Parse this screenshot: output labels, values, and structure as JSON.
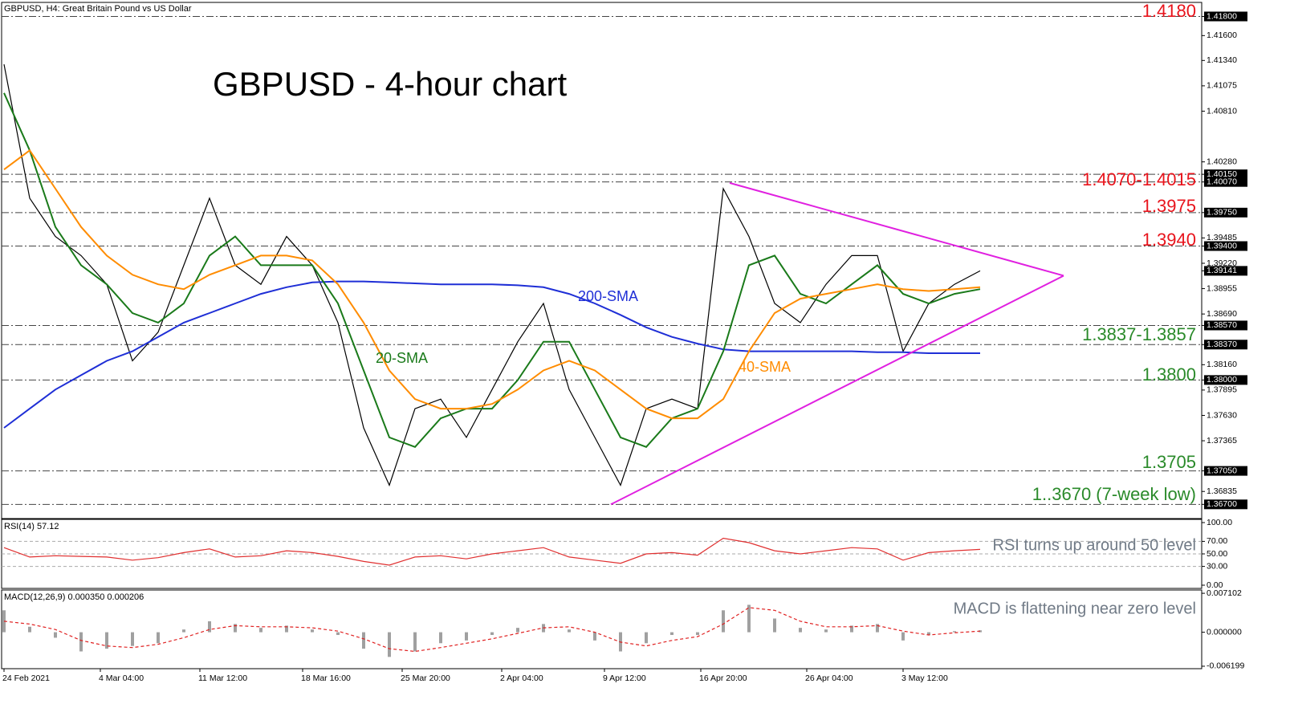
{
  "header": "GBPUSD, H4:  Great Britain Pound vs US Dollar",
  "chart_data": [
    {
      "type": "line",
      "title": "GBPUSD - 4-hour chart",
      "x": [
        0,
        8,
        16,
        24,
        32,
        40,
        48,
        56,
        64,
        72,
        80,
        88,
        96,
        104,
        112,
        120,
        128,
        136,
        144,
        152,
        160,
        168,
        176,
        184,
        192,
        200,
        208,
        216,
        224,
        232,
        240,
        248,
        256,
        264,
        272,
        280,
        288,
        296,
        304
      ],
      "xlim": [
        0,
        373
      ],
      "values": [
        1.413,
        1.399,
        1.395,
        1.393,
        1.39,
        1.382,
        1.385,
        1.392,
        1.399,
        1.392,
        1.39,
        1.395,
        1.392,
        1.386,
        1.375,
        1.369,
        1.377,
        1.378,
        1.374,
        1.379,
        1.384,
        1.388,
        1.379,
        1.374,
        1.369,
        1.377,
        1.378,
        1.377,
        1.4,
        1.395,
        1.388,
        1.386,
        1.39,
        1.393,
        1.393,
        1.383,
        1.388,
        1.39,
        1.39141
      ],
      "color": "#000000",
      "series": [
        {
          "name": "200-SMA",
          "color": "#1f2fd6",
          "values": [
            1.375,
            1.377,
            1.379,
            1.3805,
            1.382,
            1.383,
            1.3845,
            1.386,
            1.387,
            1.388,
            1.389,
            1.3897,
            1.3902,
            1.3903,
            1.3903,
            1.3902,
            1.3901,
            1.39,
            1.39,
            1.39,
            1.3899,
            1.3897,
            1.389,
            1.388,
            1.3868,
            1.3855,
            1.3845,
            1.3838,
            1.3832,
            1.383,
            1.383,
            1.383,
            1.383,
            1.383,
            1.3829,
            1.3829,
            1.3828,
            1.3828,
            1.3828
          ]
        },
        {
          "name": "20-SMA",
          "color": "#1a7a1a",
          "values": [
            1.41,
            1.404,
            1.396,
            1.392,
            1.39,
            1.387,
            1.386,
            1.388,
            1.393,
            1.395,
            1.392,
            1.392,
            1.392,
            1.388,
            1.381,
            1.374,
            1.373,
            1.376,
            1.377,
            1.377,
            1.38,
            1.384,
            1.384,
            1.379,
            1.374,
            1.373,
            1.376,
            1.377,
            1.383,
            1.392,
            1.393,
            1.389,
            1.388,
            1.39,
            1.392,
            1.389,
            1.388,
            1.389,
            1.3895
          ]
        },
        {
          "name": "40-SMA",
          "color": "#ff8c00",
          "values": [
            1.402,
            1.404,
            1.4,
            1.396,
            1.393,
            1.391,
            1.39,
            1.3895,
            1.391,
            1.392,
            1.393,
            1.393,
            1.3925,
            1.39,
            1.386,
            1.381,
            1.378,
            1.377,
            1.377,
            1.3775,
            1.379,
            1.381,
            1.382,
            1.381,
            1.379,
            1.377,
            1.376,
            1.376,
            1.378,
            1.383,
            1.387,
            1.3885,
            1.389,
            1.3895,
            1.39,
            1.3895,
            1.3893,
            1.3895,
            1.3897
          ]
        }
      ],
      "ylim": [
        1.3656,
        1.4193
      ],
      "yticks": [
        {
          "value": 1.418,
          "label": "1.41800"
        },
        {
          "value": 1.416,
          "label": "1.41600"
        },
        {
          "value": 1.4134,
          "label": "1.41340"
        },
        1.41075,
        {
          "value": 1.4081,
          "label": "1.40810"
        },
        {
          "value": 1.4028,
          "label": "1.40280"
        },
        {
          "value": 1.4015,
          "label": "1.40150"
        },
        {
          "value": 1.4007,
          "label": "1.40070"
        },
        {
          "value": 1.3975,
          "label": "1.39750"
        },
        1.39485,
        {
          "value": 1.394,
          "label": "1.39400"
        },
        {
          "value": 1.3922,
          "label": "1.39220"
        },
        1.39141,
        1.38955,
        {
          "value": 1.3869,
          "label": "1.38690"
        },
        {
          "value": 1.3857,
          "label": "1.38570"
        },
        {
          "value": 1.3837,
          "label": "1.38370"
        },
        {
          "value": 1.3816,
          "label": "1.38160"
        },
        {
          "value": 1.38,
          "label": "1.38000"
        },
        1.37895,
        {
          "value": 1.3763,
          "label": "1.37630"
        },
        1.37365,
        {
          "value": 1.3705,
          "label": "1.37050"
        },
        1.36835,
        {
          "value": 1.367,
          "label": "1.36700"
        }
      ],
      "levels": [
        1.418,
        1.4015,
        1.4007,
        1.3975,
        1.394,
        1.3857,
        1.3837,
        1.38,
        1.3705,
        1.367
      ],
      "trendlines": [
        {
          "color": "#e020e0",
          "x": [
            189,
            330
          ],
          "values": [
            1.367,
            1.3909
          ]
        },
        {
          "color": "#e020e0",
          "x": [
            226,
            330
          ],
          "values": [
            1.4006,
            1.3909
          ]
        }
      ],
      "annotations": [
        "1.4180",
        "1.4070-1.4015",
        "1.3975",
        "1.3940",
        "1.3837-1.3857",
        "1.3800",
        "1.3705",
        "1..3670 (7-week low)"
      ],
      "annotation_colors": [
        "#e8141c",
        "#e8141c",
        "#e8141c",
        "#e8141c",
        "#2a8a2a",
        "#2a8a2a",
        "#2a8a2a",
        "#2a8a2a"
      ]
    },
    {
      "type": "line",
      "title": "RSI(14) 57.12",
      "x": [
        0,
        8,
        16,
        24,
        32,
        40,
        48,
        56,
        64,
        72,
        80,
        88,
        96,
        104,
        112,
        120,
        128,
        136,
        144,
        152,
        160,
        168,
        176,
        184,
        192,
        200,
        208,
        216,
        224,
        232,
        240,
        248,
        256,
        264,
        272,
        280,
        288,
        296,
        304
      ],
      "xlim": [
        0,
        373
      ],
      "values": [
        60,
        45,
        47,
        46,
        45,
        40,
        44,
        52,
        58,
        45,
        47,
        55,
        52,
        46,
        38,
        32,
        45,
        47,
        42,
        50,
        55,
        60,
        45,
        40,
        35,
        50,
        52,
        48,
        75,
        68,
        55,
        50,
        55,
        60,
        58,
        40,
        52,
        55,
        57.12
      ],
      "color": "#e03030",
      "ylim": [
        0,
        100
      ],
      "yticks": [
        {
          "value": 100,
          "label": "100.00"
        },
        {
          "value": 70,
          "label": "70.00"
        },
        {
          "value": 50,
          "label": "50.00"
        },
        {
          "value": 30,
          "label": "30.00"
        },
        {
          "value": 0,
          "label": "0.00"
        }
      ],
      "grid": true,
      "annotations": [
        "RSI turns up around 50 level"
      ]
    },
    {
      "type": "line",
      "title": "MACD(12,26,9) 0.000350 0.000206",
      "x": [
        0,
        8,
        16,
        24,
        32,
        40,
        48,
        56,
        64,
        72,
        80,
        88,
        96,
        104,
        112,
        120,
        128,
        136,
        144,
        152,
        160,
        168,
        176,
        184,
        192,
        200,
        208,
        216,
        224,
        232,
        240,
        248,
        256,
        264,
        272,
        280,
        288,
        296,
        304
      ],
      "xlim": [
        0,
        373
      ],
      "series": [
        {
          "type": "bar",
          "color": "#a0a0a0",
          "values": [
            0.004,
            0.001,
            -0.001,
            -0.0035,
            -0.003,
            -0.0025,
            -0.002,
            0.0005,
            0.002,
            0.0015,
            0.0008,
            0.0012,
            0.0005,
            -0.0005,
            -0.003,
            -0.0045,
            -0.0035,
            -0.002,
            -0.0015,
            -0.0005,
            0.0008,
            0.0015,
            0.0005,
            -0.0015,
            -0.0035,
            -0.002,
            -0.0005,
            -0.0005,
            0.004,
            0.005,
            0.0025,
            0.0008,
            0.0005,
            0.0012,
            0.0015,
            -0.0015,
            -0.0005,
            0.0002,
            0.00035
          ]
        },
        {
          "type": "line",
          "dashed": true,
          "color": "#e02020",
          "values": [
            0.002,
            0.0015,
            0.0005,
            -0.0015,
            -0.0025,
            -0.0028,
            -0.0022,
            -0.001,
            0.0005,
            0.0012,
            0.001,
            0.001,
            0.0008,
            0.0002,
            -0.0012,
            -0.003,
            -0.0035,
            -0.0028,
            -0.002,
            -0.0012,
            -0.0002,
            0.0008,
            0.001,
            0,
            -0.0018,
            -0.0025,
            -0.0015,
            -0.0008,
            0.0015,
            0.0045,
            0.004,
            0.002,
            0.001,
            0.001,
            0.0012,
            0.0002,
            -0.0005,
            -0.0001,
            0.000206
          ]
        }
      ],
      "ylim": [
        -0.0065,
        0.0077
      ],
      "yticks": [
        0.007102,
        {
          "value": 0,
          "label": "0.000000"
        },
        -0.006199
      ],
      "xticks": [
        {
          "value": 0,
          "label": "24 Feb 2021"
        },
        {
          "value": 30,
          "label": "4 Mar 04:00"
        },
        {
          "value": 61,
          "label": "11 Mar 12:00"
        },
        {
          "value": 93,
          "label": "18 Mar 16:00"
        },
        {
          "value": 124,
          "label": "25 Mar 20:00"
        },
        {
          "value": 155,
          "label": "2 Apr 04:00"
        },
        {
          "value": 187,
          "label": "9 Apr 12:00"
        },
        {
          "value": 217,
          "label": "16 Apr 20:00"
        },
        {
          "value": 250,
          "label": "26 Apr 04:00"
        },
        {
          "value": 280,
          "label": "3 May 12:00"
        }
      ],
      "annotations": [
        "MACD is flattening near zero level"
      ]
    }
  ]
}
